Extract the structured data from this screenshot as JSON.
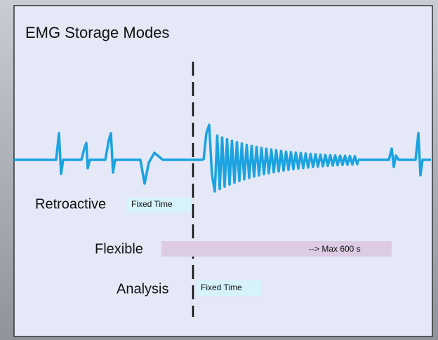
{
  "title": "EMG Storage Modes",
  "modes": [
    {
      "label": "Retroactive",
      "bar": "Fixed Time"
    },
    {
      "label": "Flexible",
      "bar": "--> Max 600 s"
    },
    {
      "label": "Analysis",
      "bar": "Fixed Time"
    }
  ]
}
